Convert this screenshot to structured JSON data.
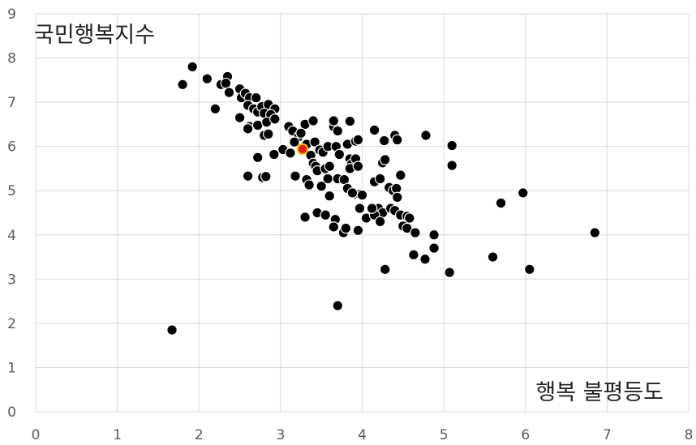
{
  "chart_data": {
    "type": "scatter",
    "title": "",
    "xlabel": "행복 불평등도",
    "ylabel": "국민행복지수",
    "xlim": [
      0,
      8
    ],
    "ylim": [
      0,
      9
    ],
    "x_ticks": [
      "0",
      "1",
      "2",
      "3",
      "4",
      "5",
      "6",
      "7",
      "8"
    ],
    "y_ticks": [
      "0",
      "1",
      "2",
      "3",
      "4",
      "5",
      "6",
      "7",
      "8",
      "9"
    ],
    "grid": true,
    "legend": "none",
    "colors": {
      "point": "#000000",
      "point_stroke": "#ffffff",
      "highlight": "#e31a1c",
      "highlight_stroke": "#f5c400",
      "grid": "#d9d9d9",
      "axis_text": "#595959"
    },
    "highlight_index": 0,
    "points": [
      {
        "x": 3.27,
        "y": 5.94
      },
      {
        "x": 1.92,
        "y": 7.8
      },
      {
        "x": 1.8,
        "y": 7.4
      },
      {
        "x": 2.1,
        "y": 7.53
      },
      {
        "x": 2.35,
        "y": 7.58
      },
      {
        "x": 2.27,
        "y": 7.4
      },
      {
        "x": 2.33,
        "y": 7.43
      },
      {
        "x": 2.37,
        "y": 7.22
      },
      {
        "x": 2.2,
        "y": 6.85
      },
      {
        "x": 2.5,
        "y": 7.3
      },
      {
        "x": 2.52,
        "y": 7.1
      },
      {
        "x": 2.57,
        "y": 7.2
      },
      {
        "x": 2.62,
        "y": 7.1
      },
      {
        "x": 2.7,
        "y": 7.1
      },
      {
        "x": 2.6,
        "y": 6.93
      },
      {
        "x": 2.67,
        "y": 6.85
      },
      {
        "x": 2.72,
        "y": 6.78
      },
      {
        "x": 2.77,
        "y": 6.9
      },
      {
        "x": 2.85,
        "y": 6.95
      },
      {
        "x": 2.93,
        "y": 6.85
      },
      {
        "x": 2.8,
        "y": 6.75
      },
      {
        "x": 2.88,
        "y": 6.72
      },
      {
        "x": 2.5,
        "y": 6.65
      },
      {
        "x": 2.62,
        "y": 6.45
      },
      {
        "x": 2.72,
        "y": 6.48
      },
      {
        "x": 2.83,
        "y": 6.55
      },
      {
        "x": 2.93,
        "y": 6.62
      },
      {
        "x": 2.6,
        "y": 6.4
      },
      {
        "x": 2.8,
        "y": 6.25
      },
      {
        "x": 2.85,
        "y": 6.28
      },
      {
        "x": 2.92,
        "y": 5.82
      },
      {
        "x": 2.72,
        "y": 5.75
      },
      {
        "x": 2.6,
        "y": 5.33
      },
      {
        "x": 2.78,
        "y": 5.3
      },
      {
        "x": 2.82,
        "y": 5.32
      },
      {
        "x": 1.67,
        "y": 1.85
      },
      {
        "x": 3.1,
        "y": 6.45
      },
      {
        "x": 3.15,
        "y": 6.35
      },
      {
        "x": 3.22,
        "y": 6.22
      },
      {
        "x": 3.3,
        "y": 6.5
      },
      {
        "x": 3.4,
        "y": 6.58
      },
      {
        "x": 3.25,
        "y": 6.3
      },
      {
        "x": 3.17,
        "y": 6.1
      },
      {
        "x": 3.32,
        "y": 6.05
      },
      {
        "x": 3.42,
        "y": 6.1
      },
      {
        "x": 3.03,
        "y": 5.93
      },
      {
        "x": 3.12,
        "y": 5.85
      },
      {
        "x": 3.37,
        "y": 5.8
      },
      {
        "x": 3.48,
        "y": 5.92
      },
      {
        "x": 3.52,
        "y": 5.87
      },
      {
        "x": 3.58,
        "y": 6.0
      },
      {
        "x": 3.65,
        "y": 6.45
      },
      {
        "x": 3.65,
        "y": 6.58
      },
      {
        "x": 3.7,
        "y": 6.35
      },
      {
        "x": 3.68,
        "y": 6.0
      },
      {
        "x": 3.72,
        "y": 5.82
      },
      {
        "x": 3.82,
        "y": 6.05
      },
      {
        "x": 3.85,
        "y": 6.57
      },
      {
        "x": 3.92,
        "y": 6.12
      },
      {
        "x": 3.95,
        "y": 6.15
      },
      {
        "x": 3.4,
        "y": 5.62
      },
      {
        "x": 3.43,
        "y": 5.55
      },
      {
        "x": 3.45,
        "y": 5.45
      },
      {
        "x": 3.55,
        "y": 5.5
      },
      {
        "x": 3.6,
        "y": 5.55
      },
      {
        "x": 3.85,
        "y": 5.72
      },
      {
        "x": 3.87,
        "y": 5.6
      },
      {
        "x": 3.92,
        "y": 5.72
      },
      {
        "x": 3.85,
        "y": 5.5
      },
      {
        "x": 3.95,
        "y": 5.55
      },
      {
        "x": 3.18,
        "y": 5.33
      },
      {
        "x": 3.32,
        "y": 5.25
      },
      {
        "x": 3.35,
        "y": 5.13
      },
      {
        "x": 3.5,
        "y": 5.1
      },
      {
        "x": 3.58,
        "y": 5.27
      },
      {
        "x": 3.7,
        "y": 5.27
      },
      {
        "x": 3.78,
        "y": 5.25
      },
      {
        "x": 3.6,
        "y": 4.88
      },
      {
        "x": 3.82,
        "y": 5.05
      },
      {
        "x": 3.92,
        "y": 4.92
      },
      {
        "x": 3.97,
        "y": 4.92
      },
      {
        "x": 4.0,
        "y": 4.9
      },
      {
        "x": 4.15,
        "y": 6.37
      },
      {
        "x": 4.27,
        "y": 6.13
      },
      {
        "x": 4.4,
        "y": 6.25
      },
      {
        "x": 4.43,
        "y": 6.15
      },
      {
        "x": 4.78,
        "y": 6.25
      },
      {
        "x": 5.1,
        "y": 6.02
      },
      {
        "x": 4.25,
        "y": 5.63
      },
      {
        "x": 4.28,
        "y": 5.7
      },
      {
        "x": 4.15,
        "y": 5.2
      },
      {
        "x": 4.22,
        "y": 5.27
      },
      {
        "x": 4.47,
        "y": 5.35
      },
      {
        "x": 4.33,
        "y": 5.07
      },
      {
        "x": 4.38,
        "y": 5.0
      },
      {
        "x": 4.42,
        "y": 5.05
      },
      {
        "x": 4.43,
        "y": 4.85
      },
      {
        "x": 5.1,
        "y": 5.57
      },
      {
        "x": 5.7,
        "y": 4.72
      },
      {
        "x": 5.97,
        "y": 4.95
      },
      {
        "x": 3.88,
        "y": 4.95
      },
      {
        "x": 4.2,
        "y": 4.6
      },
      {
        "x": 4.25,
        "y": 4.5
      },
      {
        "x": 4.35,
        "y": 4.6
      },
      {
        "x": 4.4,
        "y": 4.55
      },
      {
        "x": 4.47,
        "y": 4.45
      },
      {
        "x": 4.05,
        "y": 4.38
      },
      {
        "x": 4.15,
        "y": 4.45
      },
      {
        "x": 4.55,
        "y": 4.42
      },
      {
        "x": 4.58,
        "y": 4.38
      },
      {
        "x": 4.5,
        "y": 4.2
      },
      {
        "x": 4.55,
        "y": 4.15
      },
      {
        "x": 4.65,
        "y": 4.05
      },
      {
        "x": 4.12,
        "y": 4.6
      },
      {
        "x": 4.22,
        "y": 4.3
      },
      {
        "x": 3.97,
        "y": 4.6
      },
      {
        "x": 3.45,
        "y": 4.5
      },
      {
        "x": 3.55,
        "y": 4.45
      },
      {
        "x": 3.67,
        "y": 4.35
      },
      {
        "x": 3.65,
        "y": 4.18
      },
      {
        "x": 3.77,
        "y": 4.05
      },
      {
        "x": 3.3,
        "y": 4.4
      },
      {
        "x": 3.8,
        "y": 4.15
      },
      {
        "x": 3.95,
        "y": 4.1
      },
      {
        "x": 4.88,
        "y": 4.0
      },
      {
        "x": 4.88,
        "y": 3.7
      },
      {
        "x": 4.63,
        "y": 3.55
      },
      {
        "x": 4.77,
        "y": 3.45
      },
      {
        "x": 4.28,
        "y": 3.22
      },
      {
        "x": 5.07,
        "y": 3.15
      },
      {
        "x": 5.6,
        "y": 3.5
      },
      {
        "x": 6.05,
        "y": 3.22
      },
      {
        "x": 6.85,
        "y": 4.05
      },
      {
        "x": 3.7,
        "y": 2.4
      }
    ]
  }
}
